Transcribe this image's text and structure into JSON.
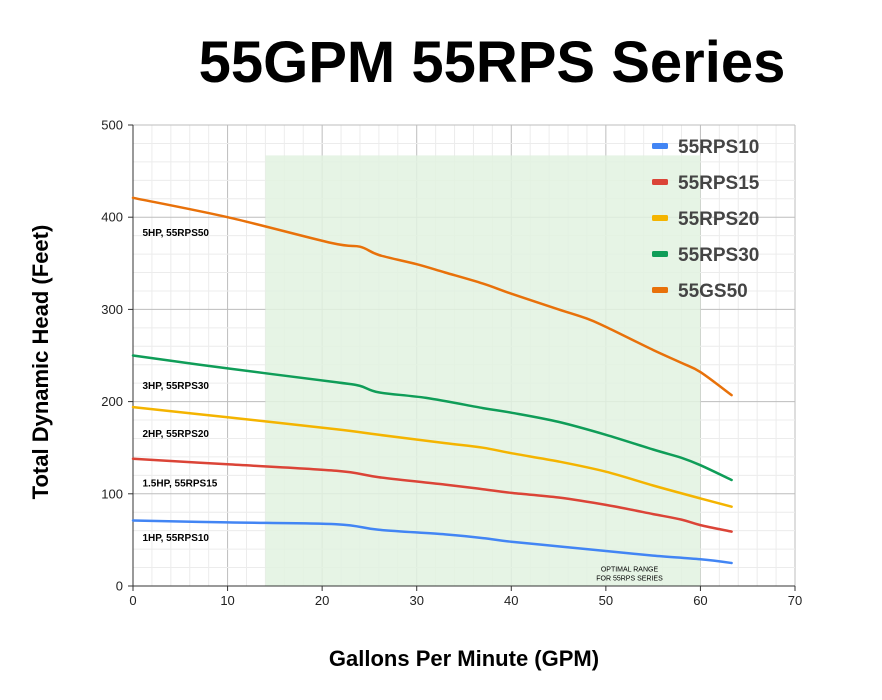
{
  "chart_data": {
    "type": "line",
    "title": "55GPM 55RPS Series",
    "xlabel": "Gallons Per Minute (GPM)",
    "ylabel": "Total Dynamic Head (Feet)",
    "xlim": [
      0,
      70
    ],
    "ylim": [
      0,
      500
    ],
    "xticks": [
      0,
      10,
      20,
      30,
      40,
      50,
      60,
      70
    ],
    "yticks": [
      0,
      100,
      200,
      300,
      400,
      500
    ],
    "grid": true,
    "legend_position": "top-right",
    "highlight_range": {
      "x": [
        14,
        60
      ],
      "y": [
        0,
        467
      ],
      "label_line1": "OPTIMAL RANGE",
      "label_line2": "FOR 55RPS SERIES",
      "color": "#e2f2e0"
    },
    "series": [
      {
        "name": "55RPS10",
        "curve_label": "1HP, 55RPS10",
        "label_anchor": [
          1,
          53
        ],
        "color": "#4285f4",
        "x": [
          0,
          10,
          21.5,
          26,
          33,
          37,
          40,
          45,
          50,
          55,
          60,
          63.3
        ],
        "y": [
          71,
          69,
          67,
          61,
          56,
          52,
          48,
          43,
          38,
          33,
          29,
          25
        ]
      },
      {
        "name": "55RPS15",
        "curve_label": "1.5HP, 55RPS15",
        "label_anchor": [
          1,
          112
        ],
        "color": "#db4437",
        "x": [
          0,
          10,
          21.5,
          26,
          33,
          37,
          40,
          45,
          50,
          55,
          58,
          60,
          63.3
        ],
        "y": [
          138,
          132,
          125,
          118,
          110,
          105,
          101,
          96,
          88,
          78,
          72,
          66,
          59
        ]
      },
      {
        "name": "55RPS20",
        "curve_label": "2HP, 55RPS20",
        "label_anchor": [
          1,
          166
        ],
        "color": "#f4b400",
        "x": [
          0,
          10,
          21.5,
          26,
          33,
          37,
          40,
          45,
          50,
          55,
          60,
          63.3
        ],
        "y": [
          194,
          183,
          170,
          164,
          155,
          150,
          144,
          135,
          124,
          109,
          95,
          86
        ]
      },
      {
        "name": "55RPS30",
        "curve_label": "3HP, 55RPS30",
        "label_anchor": [
          1,
          218
        ],
        "color": "#0f9d58",
        "x": [
          0,
          10,
          21.5,
          24,
          26,
          31,
          37,
          40,
          45,
          50,
          55,
          58,
          60,
          63.3
        ],
        "y": [
          250,
          236,
          221,
          217,
          210,
          204,
          193,
          188,
          178,
          164,
          148,
          139,
          131,
          115
        ]
      },
      {
        "name": "55GS50",
        "curve_label": "5HP, 55RPS50",
        "label_anchor": [
          1,
          384
        ],
        "color": "#e8710a",
        "x": [
          0,
          10,
          21,
          24,
          26,
          30,
          33,
          37,
          40,
          45,
          48,
          50,
          55,
          58,
          60,
          63.3
        ],
        "y": [
          421,
          400,
          372,
          368,
          359,
          349,
          340,
          328,
          317,
          300,
          290,
          281,
          256,
          242,
          232,
          207
        ]
      }
    ]
  }
}
